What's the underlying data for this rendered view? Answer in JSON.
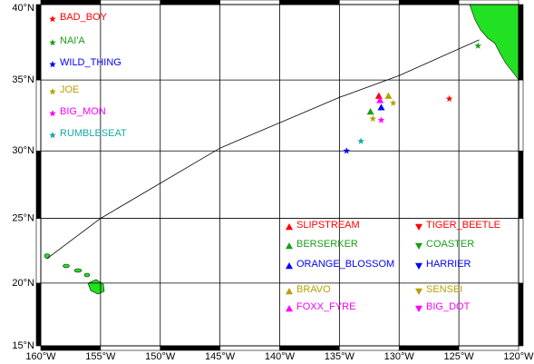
{
  "chart_data": {
    "type": "map",
    "projection": "mercator",
    "xlim": [
      -160,
      -120
    ],
    "ylim": [
      15,
      40
    ],
    "xticks": [
      {
        "value": -160,
        "label": "160°W"
      },
      {
        "value": -155,
        "label": "155°W"
      },
      {
        "value": -150,
        "label": "150°W"
      },
      {
        "value": -145,
        "label": "145°W"
      },
      {
        "value": -140,
        "label": "140°W"
      },
      {
        "value": -135,
        "label": "135°W"
      },
      {
        "value": -130,
        "label": "130°W"
      },
      {
        "value": -125,
        "label": "125°W"
      },
      {
        "value": -120,
        "label": "120°W"
      }
    ],
    "yticks": [
      {
        "value": 15,
        "label": "15°N"
      },
      {
        "value": 20,
        "label": "20°N"
      },
      {
        "value": 25,
        "label": "25°N"
      },
      {
        "value": 30,
        "label": "30°N"
      },
      {
        "value": 35,
        "label": "35°N"
      },
      {
        "value": 40,
        "label": "40°N"
      }
    ],
    "grid": true,
    "route": {
      "color": "#000000",
      "lon": [
        -159.5,
        -155,
        -145,
        -135,
        -130,
        -123.3
      ],
      "lat": [
        21.9,
        25,
        30.2,
        33.8,
        35.3,
        37.7
      ]
    },
    "legend": [
      {
        "name": "BAD_BOY",
        "color": "#ff0000",
        "symbol": "star"
      },
      {
        "name": "NAI'A",
        "color": "#1a9e1a",
        "symbol": "star"
      },
      {
        "name": "WILD_THING",
        "color": "#0000ff",
        "symbol": "star"
      },
      {
        "name": "JOE",
        "color": "#b8a000",
        "symbol": "star"
      },
      {
        "name": "BIG_MON",
        "color": "#ff00ff",
        "symbol": "star"
      },
      {
        "name": "RUMBLESEAT",
        "color": "#1aa6a6",
        "symbol": "star"
      },
      {
        "name": "SLIPSTREAM",
        "color": "#ff0000",
        "symbol": "triangle-up"
      },
      {
        "name": "BERSERKER",
        "color": "#1a9e1a",
        "symbol": "triangle-up"
      },
      {
        "name": "ORANGE_BLOSSOM",
        "color": "#0000ff",
        "symbol": "triangle-up"
      },
      {
        "name": "BRAVO",
        "color": "#b8a000",
        "symbol": "triangle-up"
      },
      {
        "name": "FOXX_FYRE",
        "color": "#ff00ff",
        "symbol": "triangle-up"
      },
      {
        "name": "TIGER_BEETLE",
        "color": "#ff0000",
        "symbol": "triangle-down"
      },
      {
        "name": "COASTER",
        "color": "#1a9e1a",
        "symbol": "triangle-down"
      },
      {
        "name": "HARRIER",
        "color": "#0000ff",
        "symbol": "triangle-down"
      },
      {
        "name": "SENSEI",
        "color": "#b8a000",
        "symbol": "triangle-down"
      },
      {
        "name": "BIG_DOT",
        "color": "#ff00ff",
        "symbol": "triangle-down"
      }
    ],
    "points": [
      {
        "lon": -123.4,
        "lat": 37.3,
        "color": "#1a9e1a",
        "symbol": "star"
      },
      {
        "lon": -125.8,
        "lat": 33.7,
        "color": "#ff0000",
        "symbol": "star"
      },
      {
        "lon": -131.7,
        "lat": 33.9,
        "color": "#ff0000",
        "symbol": "triangle-up"
      },
      {
        "lon": -131.6,
        "lat": 33.6,
        "color": "#ff00ff",
        "symbol": "triangle-up"
      },
      {
        "lon": -130.9,
        "lat": 33.9,
        "color": "#b8a000",
        "symbol": "triangle-up"
      },
      {
        "lon": -131.5,
        "lat": 33.1,
        "color": "#0000ff",
        "symbol": "triangle-up"
      },
      {
        "lon": -132.4,
        "lat": 32.8,
        "color": "#1a9e1a",
        "symbol": "triangle-up"
      },
      {
        "lon": -132.2,
        "lat": 32.3,
        "color": "#b8a000",
        "symbol": "star"
      },
      {
        "lon": -131.5,
        "lat": 32.2,
        "color": "#ff00ff",
        "symbol": "star"
      },
      {
        "lon": -130.5,
        "lat": 33.4,
        "color": "#b8a000",
        "symbol": "star"
      },
      {
        "lon": -133.2,
        "lat": 30.7,
        "color": "#1aa6a6",
        "symbol": "star"
      },
      {
        "lon": -134.4,
        "lat": 30.0,
        "color": "#0000ff",
        "symbol": "star"
      }
    ]
  }
}
